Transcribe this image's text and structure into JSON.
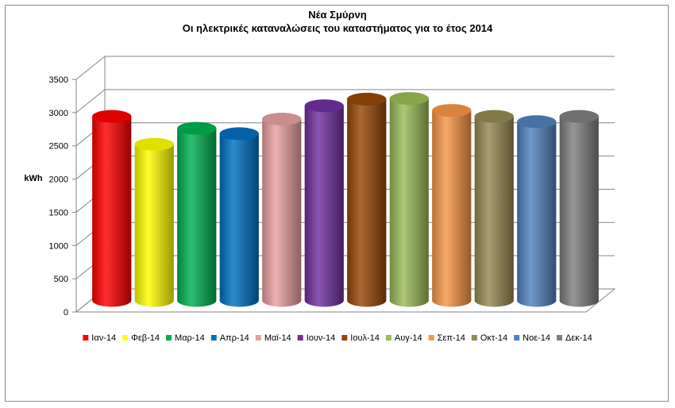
{
  "chart_data": {
    "type": "bar",
    "title": "Νέα Σμύρνη",
    "subtitle": "Οι ηλεκτρικές καταναλώσεις του καταστήματος για το έτος 2014",
    "ylabel": "kWh",
    "ylim": [
      0,
      3500
    ],
    "yticks": [
      0,
      500,
      1000,
      1500,
      2000,
      2500,
      3000,
      3500
    ],
    "grid": true,
    "legend": "bottom",
    "categories": [
      "Ιαν-14",
      "Φεβ-14",
      "Μαρ-14",
      "Απρ-14",
      "Μαϊ-14",
      "Ιουν-14",
      "Ιουλ-14",
      "Αυγ-14",
      "Σεπ-14",
      "Οκτ-14",
      "Νοε-14",
      "Δεκ-14"
    ],
    "values": [
      2770,
      2350,
      2590,
      2510,
      2730,
      2930,
      3030,
      3040,
      2860,
      2770,
      2690,
      2770
    ],
    "colors": [
      "#ff0000",
      "#ffff00",
      "#00b050",
      "#0070c0",
      "#e6a0a0",
      "#7030a0",
      "#974706",
      "#9bbb59",
      "#f79646",
      "#948a54",
      "#4f81bd",
      "#7f7f7f"
    ]
  }
}
